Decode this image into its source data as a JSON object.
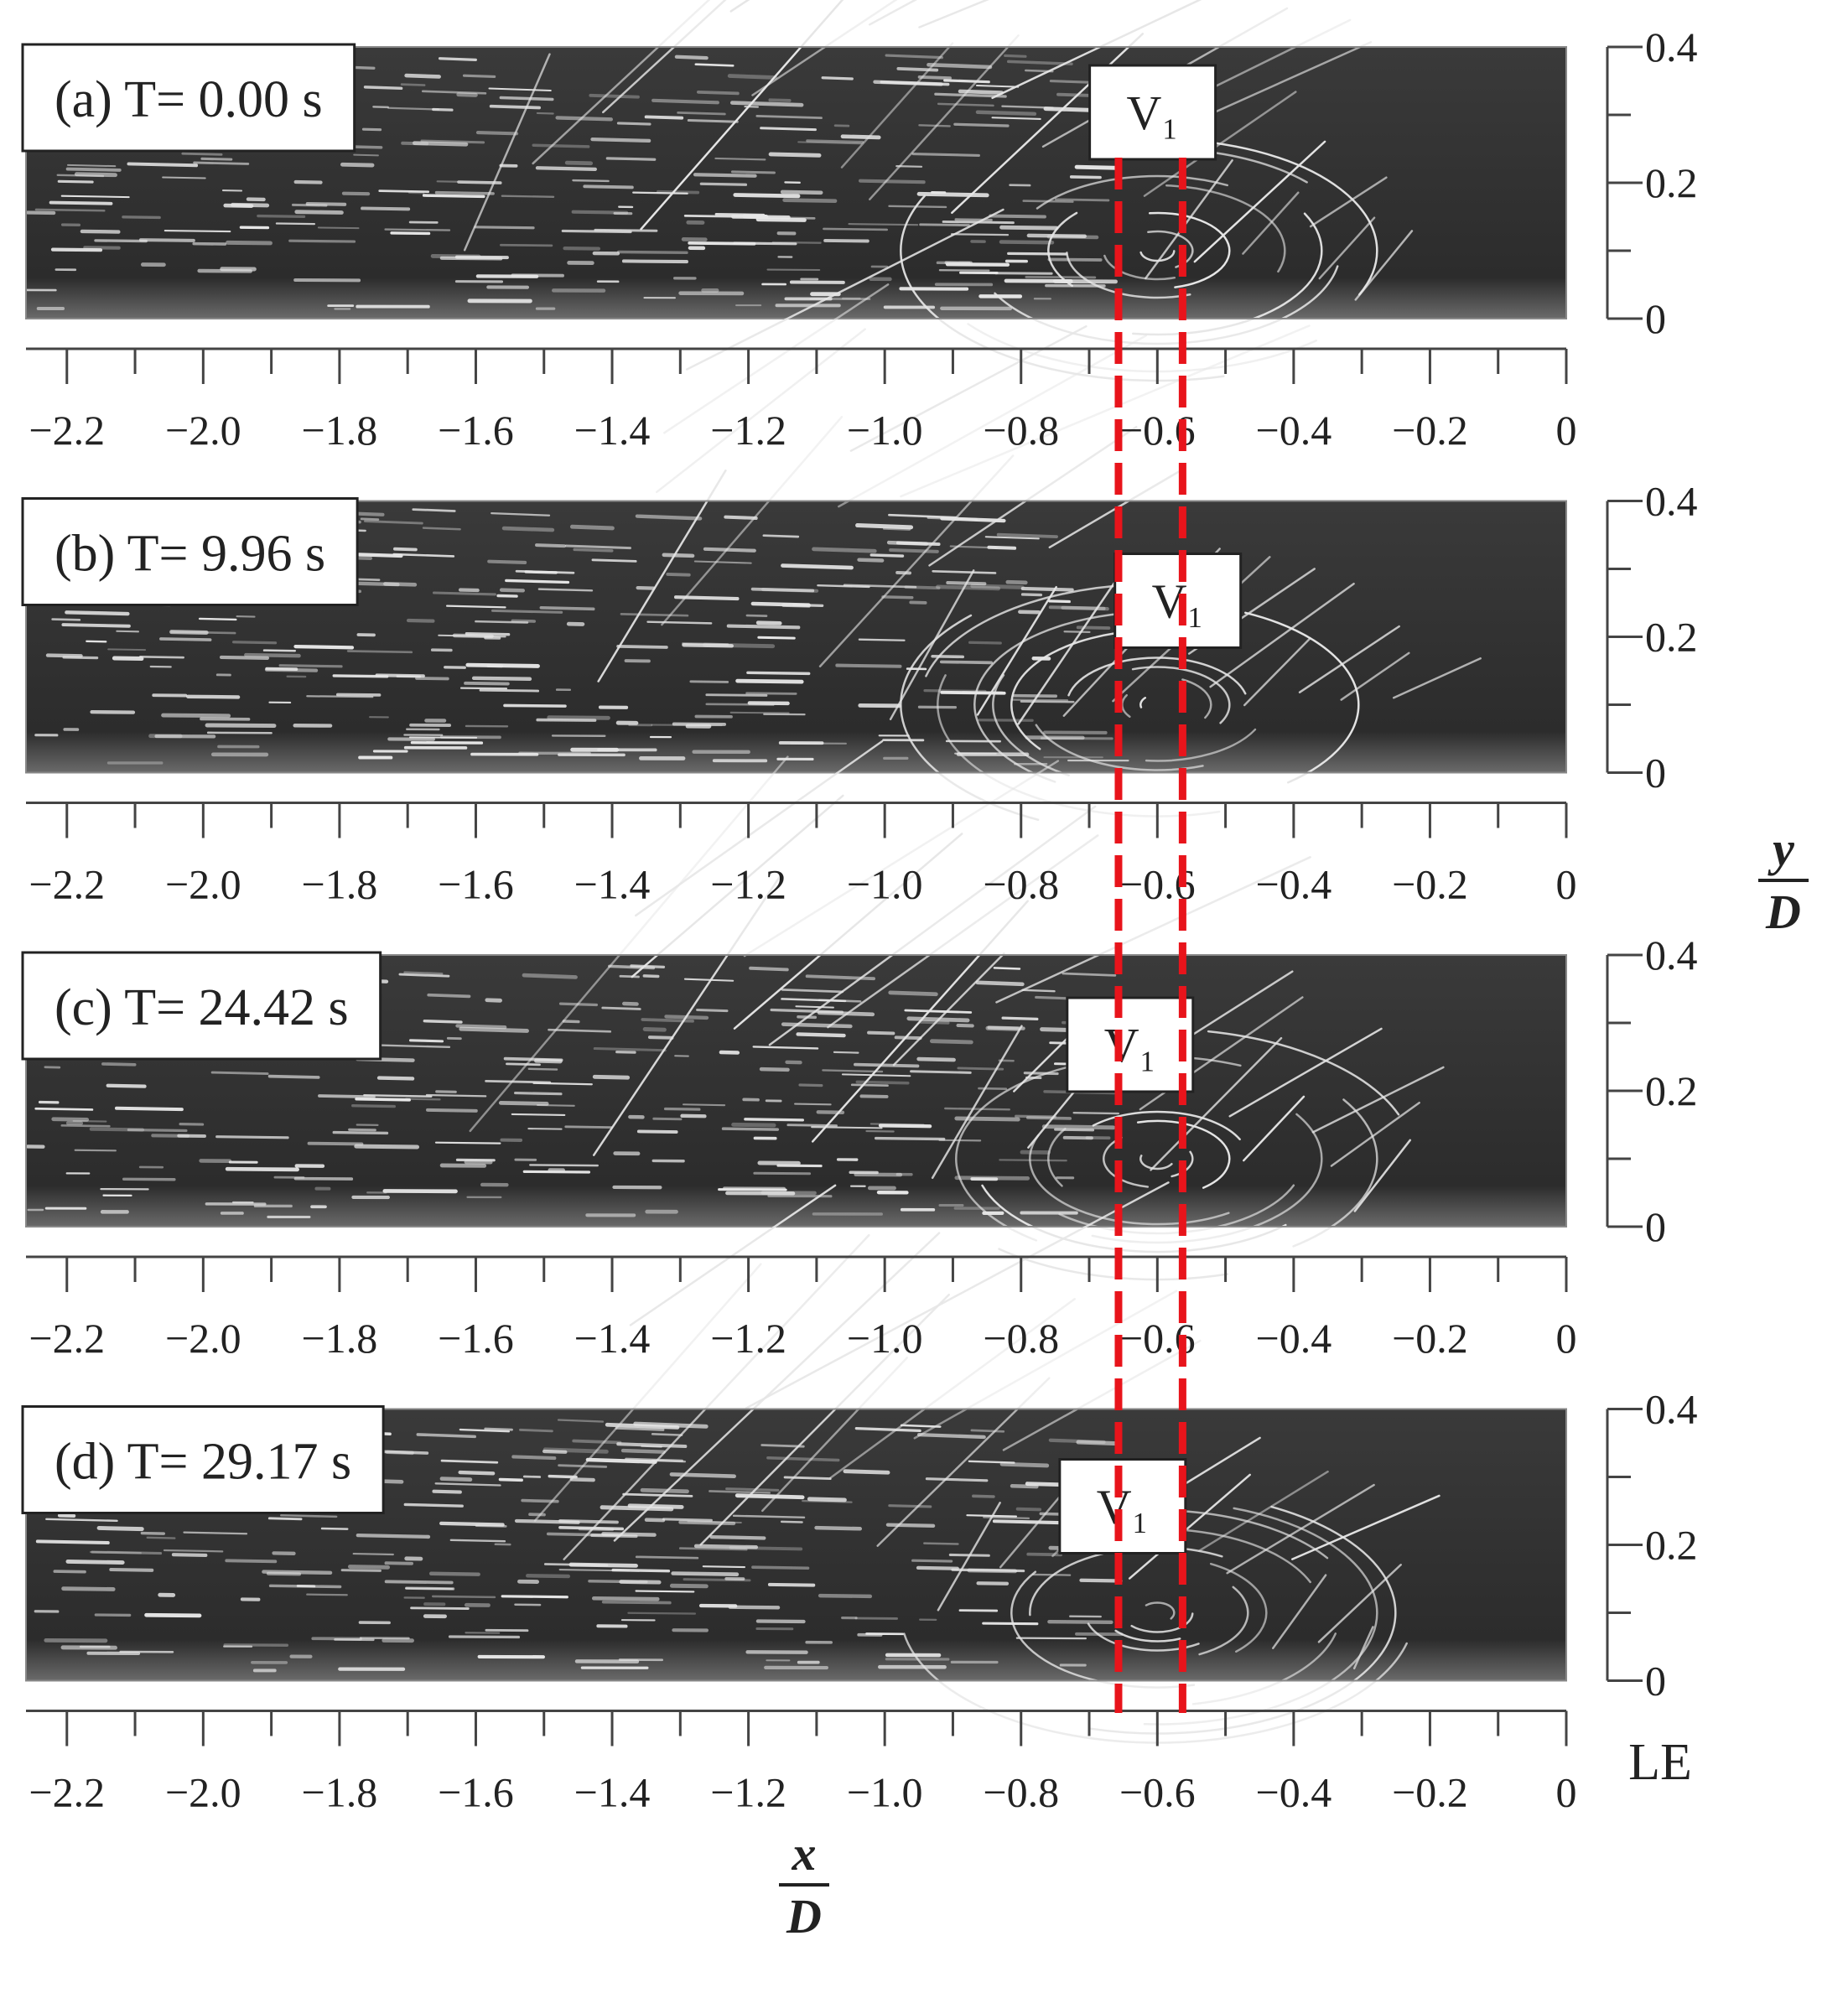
{
  "chart_data": [
    {
      "type": "image",
      "title": "(a) T= 0.00 s",
      "annotation": "V₁",
      "xlim": [
        -2.26,
        0
      ],
      "ylim": [
        0,
        0.4
      ],
      "xticks": [
        {
          "value": -2.2,
          "label": "−2.2"
        },
        {
          "value": -2.0,
          "label": "−2.0"
        },
        {
          "value": -1.8,
          "label": "−1.8"
        },
        {
          "value": -1.6,
          "label": "−1.6"
        },
        {
          "value": -1.4,
          "label": "−1.4"
        },
        {
          "value": -1.2,
          "label": "−1.2"
        },
        {
          "value": -1.0,
          "label": "−1.0"
        },
        {
          "value": -0.8,
          "label": "−0.8"
        },
        {
          "value": -0.6,
          "label": "−0.6"
        },
        {
          "value": -0.4,
          "label": "−0.4"
        },
        {
          "value": -0.2,
          "label": "−0.2"
        },
        0
      ],
      "minor_xticks": [
        -2.1,
        -1.9,
        -1.7,
        -1.5,
        -1.3,
        -1.1,
        -0.9,
        -0.7,
        -0.5,
        -0.3,
        -0.1
      ],
      "yticks": [
        0,
        0.2,
        0.4
      ],
      "minor_yticks": [
        0.1,
        0.3
      ]
    },
    {
      "type": "image",
      "title": "(b) T= 9.96 s",
      "annotation": "V₁",
      "xlim": [
        -2.26,
        0
      ],
      "ylim": [
        0,
        0.4
      ],
      "xticks": [
        {
          "value": -2.2,
          "label": "−2.2"
        },
        {
          "value": -2.0,
          "label": "−2.0"
        },
        {
          "value": -1.8,
          "label": "−1.8"
        },
        {
          "value": -1.6,
          "label": "−1.6"
        },
        {
          "value": -1.4,
          "label": "−1.4"
        },
        {
          "value": -1.2,
          "label": "−1.2"
        },
        {
          "value": -1.0,
          "label": "−1.0"
        },
        {
          "value": -0.8,
          "label": "−0.8"
        },
        {
          "value": -0.6,
          "label": "−0.6"
        },
        {
          "value": -0.4,
          "label": "−0.4"
        },
        {
          "value": -0.2,
          "label": "−0.2"
        },
        0
      ],
      "minor_xticks": [
        -2.1,
        -1.9,
        -1.7,
        -1.5,
        -1.3,
        -1.1,
        -0.9,
        -0.7,
        -0.5,
        -0.3,
        -0.1
      ],
      "yticks": [
        0,
        0.2,
        0.4
      ],
      "minor_yticks": [
        0.1,
        0.3
      ]
    },
    {
      "type": "image",
      "title": "(c) T= 24.42 s",
      "annotation": "V₁",
      "xlim": [
        -2.26,
        0
      ],
      "ylim": [
        0,
        0.4
      ],
      "xticks": [
        {
          "value": -2.2,
          "label": "−2.2"
        },
        {
          "value": -2.0,
          "label": "−2.0"
        },
        {
          "value": -1.8,
          "label": "−1.8"
        },
        {
          "value": -1.6,
          "label": "−1.6"
        },
        {
          "value": -1.4,
          "label": "−1.4"
        },
        {
          "value": -1.2,
          "label": "−1.2"
        },
        {
          "value": -1.0,
          "label": "−1.0"
        },
        {
          "value": -0.8,
          "label": "−0.8"
        },
        {
          "value": -0.6,
          "label": "−0.6"
        },
        {
          "value": -0.4,
          "label": "−0.4"
        },
        {
          "value": -0.2,
          "label": "−0.2"
        },
        0
      ],
      "minor_xticks": [
        -2.1,
        -1.9,
        -1.7,
        -1.5,
        -1.3,
        -1.1,
        -0.9,
        -0.7,
        -0.5,
        -0.3,
        -0.1
      ],
      "yticks": [
        0,
        0.2,
        0.4
      ],
      "minor_yticks": [
        0.1,
        0.3
      ]
    },
    {
      "type": "image",
      "title": "(d) T= 29.17 s",
      "annotation": "V₁",
      "xlim": [
        -2.26,
        0
      ],
      "ylim": [
        0,
        0.4
      ],
      "xticks": [
        {
          "value": -2.2,
          "label": "−2.2"
        },
        {
          "value": -2.0,
          "label": "−2.0"
        },
        {
          "value": -1.8,
          "label": "−1.8"
        },
        {
          "value": -1.6,
          "label": "−1.6"
        },
        {
          "value": -1.4,
          "label": "−1.4"
        },
        {
          "value": -1.2,
          "label": "−1.2"
        },
        {
          "value": -1.0,
          "label": "−1.0"
        },
        {
          "value": -0.8,
          "label": "−0.8"
        },
        {
          "value": -0.6,
          "label": "−0.6"
        },
        {
          "value": -0.4,
          "label": "−0.4"
        },
        {
          "value": -0.2,
          "label": "−0.2"
        },
        0
      ],
      "minor_xticks": [
        -2.1,
        -1.9,
        -1.7,
        -1.5,
        -1.3,
        -1.1,
        -0.9,
        -0.7,
        -0.5,
        -0.3,
        -0.1
      ],
      "yticks": [
        0,
        0.2,
        0.4
      ],
      "minor_yticks": [
        0.1,
        0.3
      ]
    }
  ],
  "figure": {
    "xlabel": {
      "numerator": "x",
      "denominator": "D"
    },
    "ylabel": {
      "numerator": "y",
      "denominator": "D"
    },
    "annotation": "LE",
    "reference_lines": {
      "x": [
        -0.657,
        -0.563
      ],
      "color": "#e8141b"
    }
  }
}
